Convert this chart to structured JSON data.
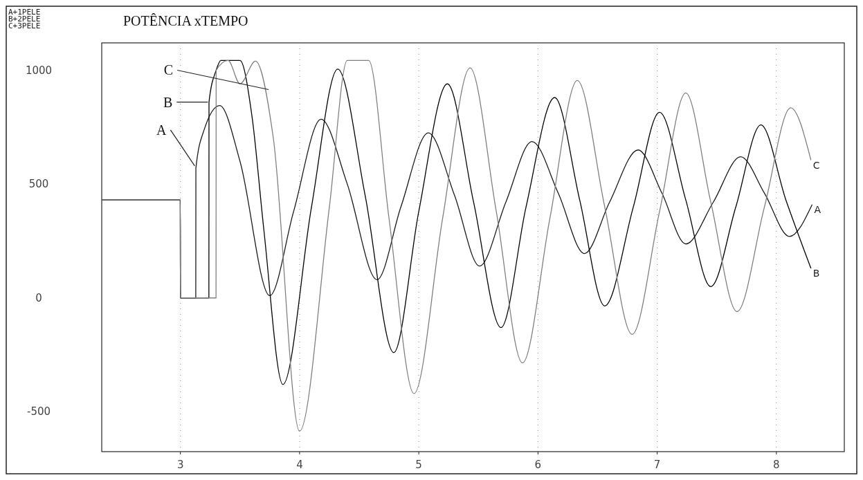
{
  "chart_data": {
    "type": "line",
    "title": "POTÊNCIA xTEMPO",
    "xlim": [
      2.34,
      8.57
    ],
    "xticks": [
      3,
      4,
      5,
      6,
      7,
      8
    ],
    "ylim": [
      -675,
      1120
    ],
    "yticks": [
      -500,
      0,
      500,
      1000
    ],
    "grid": "x",
    "line_style": "solid",
    "marker": "none",
    "annotations": [
      "A+1PELE",
      "B+2PELE",
      "C+3PELE",
      {
        "text": "C",
        "x": 3.74,
        "y": 915
      },
      {
        "text": "B",
        "x": 3.23,
        "y": 860
      },
      {
        "text": "A",
        "x": 3.12,
        "y": 580
      }
    ],
    "series": [
      {
        "name": "A",
        "color": "#1a1a1a",
        "x": [
          2.34,
          2.999,
          3.0,
          3.129,
          3.13,
          3.2,
          3.33,
          3.5,
          3.75,
          3.95,
          4.18,
          4.4,
          4.65,
          4.85,
          5.08,
          5.3,
          5.51,
          5.73,
          5.95,
          6.17,
          6.39,
          6.6,
          6.84,
          7.04,
          7.24,
          7.47,
          7.7,
          7.9,
          8.11,
          8.3
        ],
        "values": [
          430,
          430,
          0,
          0,
          570,
          740,
          845,
          600,
          10,
          380,
          785,
          500,
          80,
          400,
          725,
          450,
          140,
          420,
          687,
          460,
          195,
          420,
          650,
          460,
          237,
          420,
          620,
          460,
          270,
          410
        ]
      },
      {
        "name": "B",
        "color": "#000000",
        "x": [
          2.34,
          2.999,
          3.0,
          3.239,
          3.24,
          3.3,
          3.34,
          3.5,
          3.6,
          3.7,
          3.86,
          4.1,
          4.32,
          4.55,
          4.79,
          5.0,
          5.24,
          5.46,
          5.69,
          5.9,
          6.14,
          6.35,
          6.56,
          6.8,
          7.02,
          7.24,
          7.45,
          7.66,
          7.87,
          8.08,
          8.29
        ],
        "values": [
          430,
          430,
          0,
          0,
          860,
          1000,
          1043,
          1043,
          800,
          300,
          -380,
          400,
          1005,
          450,
          -240,
          380,
          940,
          420,
          -130,
          400,
          880,
          430,
          -35,
          400,
          815,
          430,
          50,
          400,
          760,
          430,
          130
        ]
      },
      {
        "name": "C",
        "color": "#808080",
        "x": [
          2.34,
          2.999,
          3.0,
          3.299,
          3.3,
          3.4,
          3.5,
          3.63,
          3.78,
          4.0,
          4.25,
          4.4,
          4.58,
          4.75,
          4.96,
          5.2,
          5.43,
          5.65,
          5.87,
          6.1,
          6.33,
          6.56,
          6.79,
          7.02,
          7.24,
          7.45,
          7.67,
          7.9,
          8.12,
          8.29
        ],
        "values": [
          430,
          430,
          0,
          0,
          1000,
          1043,
          940,
          1040,
          700,
          -585,
          400,
          1043,
          1043,
          350,
          -420,
          350,
          1010,
          380,
          -285,
          350,
          955,
          400,
          -160,
          380,
          900,
          420,
          -60,
          400,
          835,
          605
        ]
      }
    ]
  }
}
